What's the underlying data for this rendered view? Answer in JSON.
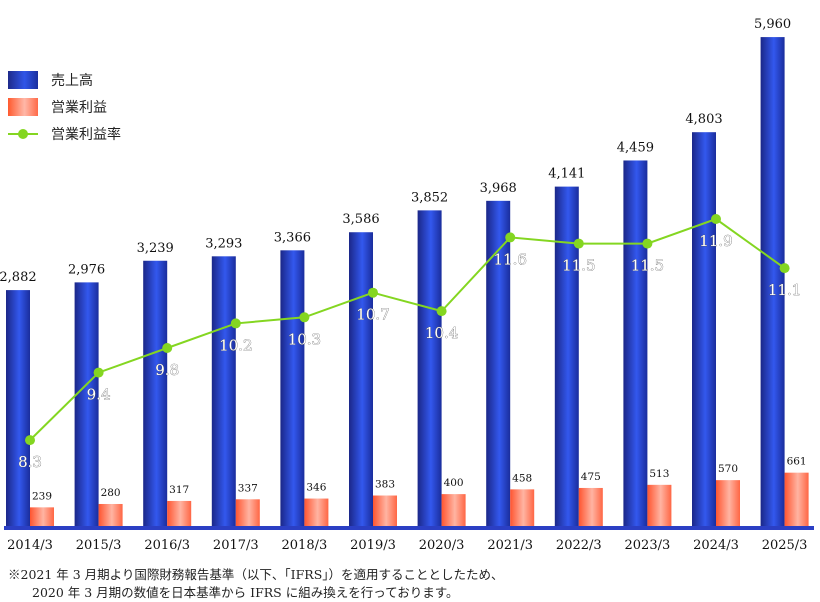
{
  "chart_data": {
    "type": "bar",
    "categories": [
      "2014/3",
      "2015/3",
      "2016/3",
      "2017/3",
      "2018/3",
      "2019/3",
      "2020/3",
      "2021/3",
      "2022/3",
      "2023/3",
      "2024/3",
      "2025/3"
    ],
    "series": [
      {
        "name": "売上高",
        "type": "bar",
        "values": [
          2882,
          2976,
          3239,
          3293,
          3366,
          3586,
          3852,
          3968,
          4141,
          4459,
          4803,
          5960
        ],
        "labels": [
          "2,882",
          "2,976",
          "3,239",
          "3,293",
          "3,366",
          "3,586",
          "3,852",
          "3,968",
          "4,141",
          "4,459",
          "4,803",
          "5,960"
        ]
      },
      {
        "name": "営業利益",
        "type": "bar",
        "values": [
          239,
          280,
          317,
          337,
          346,
          383,
          400,
          458,
          475,
          513,
          570,
          661
        ],
        "labels": [
          "239",
          "280",
          "317",
          "337",
          "346",
          "383",
          "400",
          "458",
          "475",
          "513",
          "570",
          "661"
        ]
      },
      {
        "name": "営業利益率",
        "type": "line",
        "values": [
          8.3,
          9.4,
          9.8,
          10.2,
          10.3,
          10.7,
          10.4,
          11.6,
          11.5,
          11.5,
          11.9,
          11.1
        ],
        "labels": [
          "8.3",
          "9.4",
          "9.8",
          "10.2",
          "10.3",
          "10.7",
          "10.4",
          "11.6",
          "11.5",
          "11.5",
          "11.9",
          "11.1"
        ]
      }
    ],
    "ylim": [
      0,
      6000
    ],
    "ratio_range": [
      7,
      14
    ],
    "legend_position": "top-left",
    "colors": {
      "sales": "#2640c8",
      "op": "#ff6a48",
      "ratio": "#84d621",
      "baseline": "#2b3fc4"
    }
  },
  "footnote": {
    "line1": "※2021 年 3 月期より国際財務報告基準（以下、｢IFRS｣）を適用することとしたため、",
    "line2": "2020 年 3 月期の数値を日本基準から IFRS に組み換えを行っております。"
  }
}
